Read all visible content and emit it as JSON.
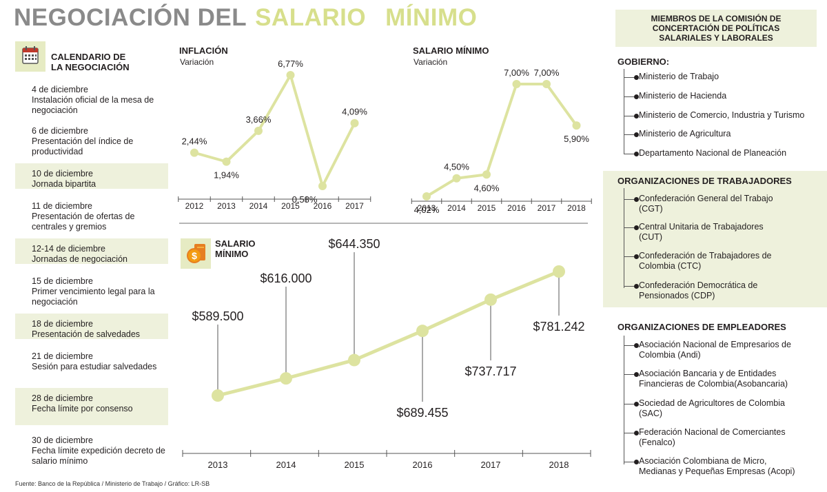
{
  "title": {
    "part1": "NEGOCIACIÓN DEL",
    "part2": "SALARIO",
    "part3": "MÍNIMO"
  },
  "calendar": {
    "heading_line1": "CALENDARIO DE",
    "heading_line2": "LA NEGOCIACIÓN",
    "items": [
      {
        "date": "4 de diciembre",
        "text": "Instalación oficial de la mesa de negociación"
      },
      {
        "date": "6 de diciembre",
        "text": "Presentación del índice de productividad"
      },
      {
        "date": "10 de diciembre",
        "text": "Jornada bipartita"
      },
      {
        "date": "11 de diciembre",
        "text": "Presentación de ofertas de centrales y gremios"
      },
      {
        "date": "12-14 de diciembre",
        "text": "Jornadas de negociación"
      },
      {
        "date": "15 de diciembre",
        "text": "Primer vencimiento legal para la negociación"
      },
      {
        "date": "18 de diciembre",
        "text": "Presentación de salvedades"
      },
      {
        "date": "21 de diciembre",
        "text": "Sesión para estudiar salvedades"
      },
      {
        "date": "28 de diciembre",
        "text": "Fecha límite por consenso"
      },
      {
        "date": "30 de diciembre",
        "text": "Fecha límite expedición decreto de salario mínimo"
      }
    ]
  },
  "chart_data": [
    {
      "type": "line",
      "title": "INFLACIÓN",
      "subtitle": "Variación",
      "categories": [
        "2012",
        "2013",
        "2014",
        "2015",
        "2016",
        "2017"
      ],
      "values": [
        2.44,
        1.94,
        3.66,
        6.77,
        0.58,
        4.09
      ],
      "labels": [
        "2,44%",
        "1,94%",
        "3,66%",
        "6,77%",
        "0,58%",
        "4,09%"
      ]
    },
    {
      "type": "line",
      "title": "SALARIO MÍNIMO",
      "subtitle": "Variación",
      "categories": [
        "2013",
        "2014",
        "2015",
        "2016",
        "2017",
        "2018"
      ],
      "values": [
        4.02,
        4.5,
        4.6,
        7.0,
        7.0,
        5.9
      ],
      "labels": [
        "4,02%",
        "4,50%",
        "4,60%",
        "7,00%",
        "7,00%",
        "5,90%"
      ]
    },
    {
      "type": "line",
      "title": "SALARIO MÍNIMO",
      "categories": [
        "2013",
        "2014",
        "2015",
        "2016",
        "2017",
        "2018"
      ],
      "values": [
        589500,
        616000,
        644350,
        689455,
        737717,
        781242
      ],
      "labels": [
        "$589.500",
        "$616.000",
        "$644.350",
        "$689.455",
        "$737.717",
        "$781.242"
      ]
    }
  ],
  "small_charts": {
    "sub_label": "Variación"
  },
  "salary_chart": {
    "heading_line1": "SALARIO",
    "heading_line2": "MÍNIMO"
  },
  "panel": {
    "heading": [
      "MIEMBROS DE LA COMISIÓN DE",
      "CONCERTACIÓN DE POLÍTICAS",
      "SALARIALES Y LABORALES"
    ],
    "gobierno": {
      "label": "GOBIERNO:",
      "items": [
        "Ministerio de Trabajo",
        "Ministerio de Hacienda",
        "Ministerio de Comercio, Industria y Turismo",
        "Ministerio de Agricultura",
        "Departamento Nacional de Planeación"
      ]
    },
    "trabajadores": {
      "label": "ORGANIZACIONES DE TRABAJADORES",
      "items": [
        [
          "Confederación General del Trabajo",
          "(CGT)"
        ],
        [
          "Central Unitaria de Trabajadores",
          "(CUT)"
        ],
        [
          "Confederación de Trabajadores de",
          "Colombia (CTC)"
        ],
        [
          "Confederación Democrática de",
          "Pensionados (CDP)"
        ]
      ]
    },
    "empleadores": {
      "label": "ORGANIZACIONES DE EMPLEADORES",
      "items": [
        [
          "Asociación Nacional de Empresarios de",
          "Colombia (Andi)"
        ],
        [
          "Asociación Bancaria y de Entidades",
          "Financieras de Colombia(Asobancaria)"
        ],
        [
          "Sociedad de Agricultores de Colombia",
          "(SAC)"
        ],
        [
          "Federación Nacional de Comerciantes",
          "(Fenalco)"
        ],
        [
          "Asociación Colombiana de Micro,",
          "Medianas y Pequeñas Empresas (Acopi)"
        ]
      ]
    }
  },
  "source": "Fuente:  Banco de la República / Ministerio de Trabajo / Gráfico: LR-SB",
  "colors": {
    "accent": "#d7df8c",
    "line": "#dde3a0",
    "shade": "#eef1dc",
    "gray_title": "#8a8a8a"
  }
}
